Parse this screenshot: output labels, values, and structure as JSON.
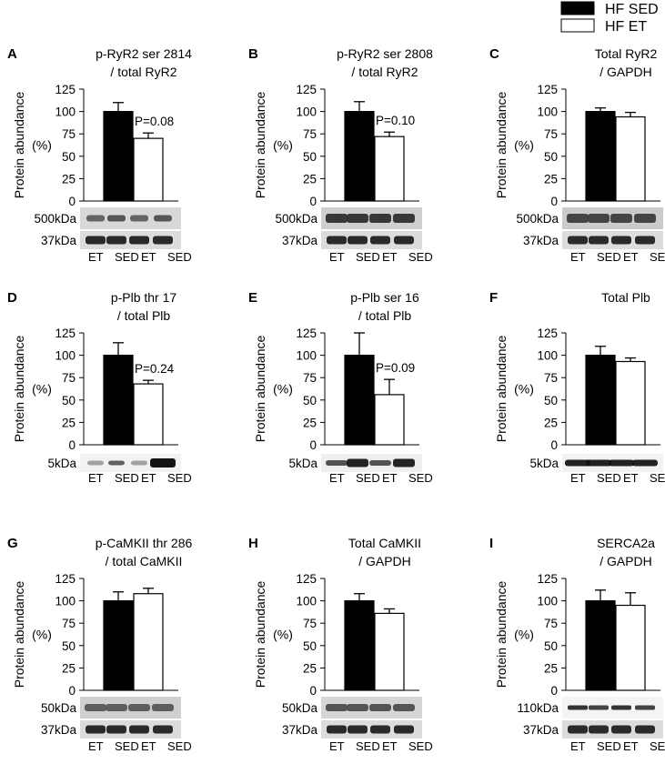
{
  "legend": {
    "items": [
      {
        "label": "HF SED",
        "fill": "#000000"
      },
      {
        "label": "HF ET",
        "fill": "#ffffff"
      }
    ]
  },
  "ylabel_line1": "Protein abundance",
  "ylabel_line2": "(%)",
  "chart_data": [
    {
      "panel": "A",
      "type": "bar",
      "title": [
        "p-RyR2 ser 2814",
        "/ total RyR2"
      ],
      "categories": [
        "HF SED",
        "HF ET"
      ],
      "values": [
        100,
        70
      ],
      "errors": [
        10,
        6
      ],
      "ylim": [
        0,
        125
      ],
      "yticks": [
        "0",
        "25",
        "50",
        "75",
        "100",
        "125"
      ],
      "pvalue": "P=0.08",
      "blot_rows": [
        {
          "label": "500kDa",
          "style": "ryr-a"
        },
        {
          "label": "37kDa",
          "style": "gapdh"
        }
      ],
      "lanes": [
        "ET",
        "SED",
        "ET",
        "SED"
      ]
    },
    {
      "panel": "B",
      "type": "bar",
      "title": [
        "p-RyR2 ser 2808",
        "/ total RyR2"
      ],
      "categories": [
        "HF SED",
        "HF ET"
      ],
      "values": [
        100,
        72
      ],
      "errors": [
        11,
        5
      ],
      "ylim": [
        0,
        125
      ],
      "yticks": [
        "0",
        "25",
        "50",
        "75",
        "100",
        "125"
      ],
      "pvalue": "P=0.10",
      "blot_rows": [
        {
          "label": "500kDa",
          "style": "ryr-b"
        },
        {
          "label": "37kDa",
          "style": "gapdh"
        }
      ],
      "lanes": [
        "ET",
        "SED",
        "ET",
        "SED"
      ]
    },
    {
      "panel": "C",
      "type": "bar",
      "title": [
        "Total RyR2",
        "/ GAPDH"
      ],
      "categories": [
        "HF SED",
        "HF ET"
      ],
      "values": [
        100,
        94
      ],
      "errors": [
        4,
        5
      ],
      "ylim": [
        0,
        125
      ],
      "yticks": [
        "0",
        "25",
        "50",
        "75",
        "100",
        "125"
      ],
      "pvalue": "",
      "blot_rows": [
        {
          "label": "500kDa",
          "style": "ryr-c"
        },
        {
          "label": "37kDa",
          "style": "gapdh"
        }
      ],
      "lanes": [
        "ET",
        "SED",
        "ET",
        "SED"
      ]
    },
    {
      "panel": "D",
      "type": "bar",
      "title": [
        "p-Plb thr 17",
        "/ total Plb"
      ],
      "categories": [
        "HF SED",
        "HF ET"
      ],
      "values": [
        100,
        68
      ],
      "errors": [
        14,
        4
      ],
      "ylim": [
        0,
        125
      ],
      "yticks": [
        "0",
        "25",
        "50",
        "75",
        "100",
        "125"
      ],
      "pvalue": "P=0.24",
      "blot_rows": [
        {
          "label": "5kDa",
          "style": "plb-d"
        }
      ],
      "lanes": [
        "ET",
        "SED",
        "ET",
        "SED"
      ]
    },
    {
      "panel": "E",
      "type": "bar",
      "title": [
        "p-Plb ser 16",
        "/ total Plb"
      ],
      "categories": [
        "HF SED",
        "HF ET"
      ],
      "values": [
        100,
        56
      ],
      "errors": [
        25,
        17
      ],
      "ylim": [
        0,
        125
      ],
      "yticks": [
        "0",
        "25",
        "50",
        "75",
        "100",
        "125"
      ],
      "pvalue": "P=0.09",
      "blot_rows": [
        {
          "label": "5kDa",
          "style": "plb-e"
        }
      ],
      "lanes": [
        "ET",
        "SED",
        "ET",
        "SED"
      ]
    },
    {
      "panel": "F",
      "type": "bar",
      "title": [
        "Total Plb"
      ],
      "categories": [
        "HF SED",
        "HF ET"
      ],
      "values": [
        100,
        93
      ],
      "errors": [
        10,
        4
      ],
      "ylim": [
        0,
        125
      ],
      "yticks": [
        "0",
        "25",
        "50",
        "75",
        "100",
        "125"
      ],
      "pvalue": "",
      "blot_rows": [
        {
          "label": "5kDa",
          "style": "plb-f"
        }
      ],
      "lanes": [
        "ET",
        "SED",
        "ET",
        "SED"
      ]
    },
    {
      "panel": "G",
      "type": "bar",
      "title": [
        "p-CaMKII thr 286",
        "/ total CaMKII"
      ],
      "categories": [
        "HF SED",
        "HF ET"
      ],
      "values": [
        100,
        108
      ],
      "errors": [
        10,
        6
      ],
      "ylim": [
        0,
        125
      ],
      "yticks": [
        "0",
        "25",
        "50",
        "75",
        "100",
        "125"
      ],
      "pvalue": "",
      "blot_rows": [
        {
          "label": "50kDa",
          "style": "camk-g"
        },
        {
          "label": "37kDa",
          "style": "gapdh"
        }
      ],
      "lanes": [
        "ET",
        "SED",
        "ET",
        "SED"
      ]
    },
    {
      "panel": "H",
      "type": "bar",
      "title": [
        "Total CaMKII",
        "/ GAPDH"
      ],
      "categories": [
        "HF SED",
        "HF ET"
      ],
      "values": [
        100,
        86
      ],
      "errors": [
        8,
        5
      ],
      "ylim": [
        0,
        125
      ],
      "yticks": [
        "0",
        "25",
        "50",
        "75",
        "100",
        "125"
      ],
      "pvalue": "",
      "blot_rows": [
        {
          "label": "50kDa",
          "style": "camk-h"
        },
        {
          "label": "37kDa",
          "style": "gapdh"
        }
      ],
      "lanes": [
        "ET",
        "SED",
        "ET",
        "SED"
      ]
    },
    {
      "panel": "I",
      "type": "bar",
      "title": [
        "SERCA2a",
        "/ GAPDH"
      ],
      "categories": [
        "HF SED",
        "HF ET"
      ],
      "values": [
        100,
        95
      ],
      "errors": [
        12,
        14
      ],
      "ylim": [
        0,
        125
      ],
      "yticks": [
        "0",
        "25",
        "50",
        "75",
        "100",
        "125"
      ],
      "pvalue": "",
      "blot_rows": [
        {
          "label": "110kDa",
          "style": "serca"
        },
        {
          "label": "37kDa",
          "style": "gapdh"
        }
      ],
      "lanes": [
        "ET",
        "SED",
        "ET",
        "SED"
      ]
    }
  ]
}
